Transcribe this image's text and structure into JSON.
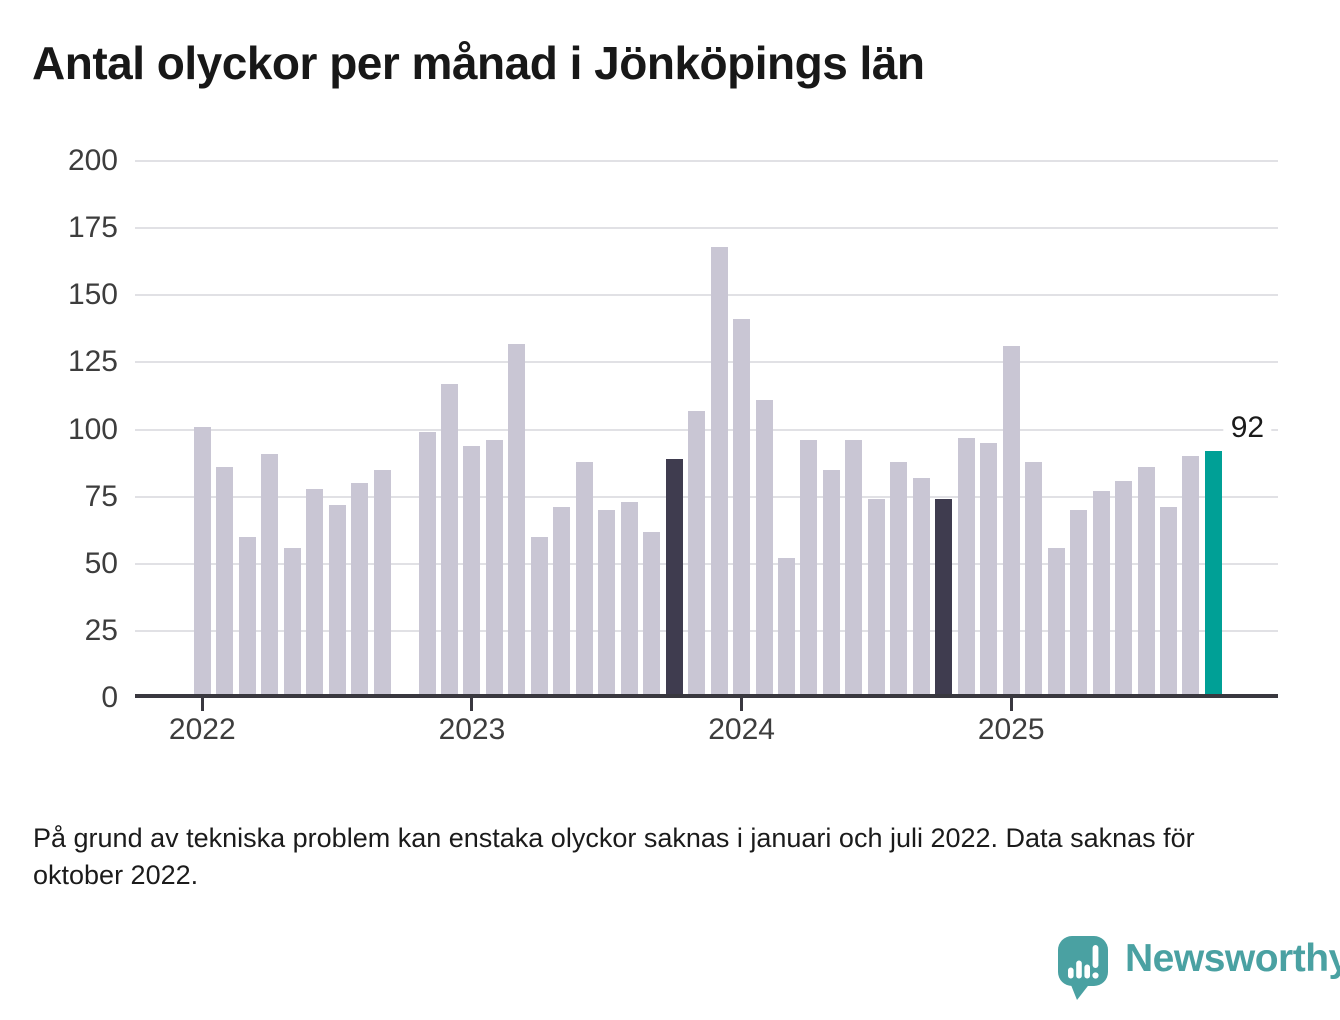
{
  "page": {
    "title": "Antal olyckor per månad i Jönköpings län",
    "footnote_lines": [
      "På grund av tekniska problem kan enstaka olyckor saknas i januari och juli 2022. Data saknas för",
      "oktober 2022."
    ]
  },
  "logo": {
    "text": "Newsworthy",
    "icon": "newsworthy-speech-bubble-bar-chart-icon",
    "color": "#4aa1a2"
  },
  "chart_data": {
    "type": "bar",
    "title": "Antal olyckor per månad i Jönköpings län",
    "xlabel": "",
    "ylabel": "",
    "ylim": [
      0,
      200
    ],
    "yticks": [
      0,
      25,
      50,
      75,
      100,
      125,
      150,
      175,
      200
    ],
    "grid": "horizontal",
    "legend": "none",
    "categories": [
      "2022-01",
      "2022-02",
      "2022-03",
      "2022-04",
      "2022-05",
      "2022-06",
      "2022-07",
      "2022-08",
      "2022-09",
      "2022-10",
      "2022-11",
      "2022-12",
      "2023-01",
      "2023-02",
      "2023-03",
      "2023-04",
      "2023-05",
      "2023-06",
      "2023-07",
      "2023-08",
      "2023-09",
      "2023-10",
      "2023-11",
      "2023-12",
      "2024-01",
      "2024-02",
      "2024-03",
      "2024-04",
      "2024-05",
      "2024-06",
      "2024-07",
      "2024-08",
      "2024-09",
      "2024-10",
      "2024-11",
      "2024-12",
      "2025-01",
      "2025-02",
      "2025-03",
      "2025-04",
      "2025-05",
      "2025-06",
      "2025-07",
      "2025-08",
      "2025-09",
      "2025-10"
    ],
    "values": [
      101,
      86,
      60,
      91,
      56,
      78,
      72,
      80,
      85,
      null,
      99,
      117,
      94,
      96,
      132,
      60,
      71,
      88,
      70,
      73,
      62,
      89,
      107,
      168,
      141,
      111,
      52,
      96,
      85,
      96,
      74,
      88,
      82,
      74,
      97,
      95,
      131,
      88,
      56,
      70,
      77,
      81,
      86,
      71,
      90,
      92
    ],
    "missing_categories": [
      "2022-10"
    ],
    "highlight_dark_categories": [
      "2023-10",
      "2024-10"
    ],
    "highlight_accent_category": "2025-10",
    "annotation": {
      "text": "92",
      "category": "2025-10"
    },
    "xticks": [
      {
        "label": "2022",
        "category": "2022-01"
      },
      {
        "label": "2023",
        "category": "2023-01"
      },
      {
        "label": "2024",
        "category": "2024-01"
      },
      {
        "label": "2025",
        "category": "2025-01"
      }
    ],
    "colors": {
      "bar": "#c9c6d4",
      "bar_dark": "#3f3c4f",
      "bar_accent": "#00a096",
      "gridline": "#e1e1e5",
      "axis": "#39383f",
      "tick_label": "#3d3d3d",
      "annotation_text": "#1a1a1a"
    }
  }
}
